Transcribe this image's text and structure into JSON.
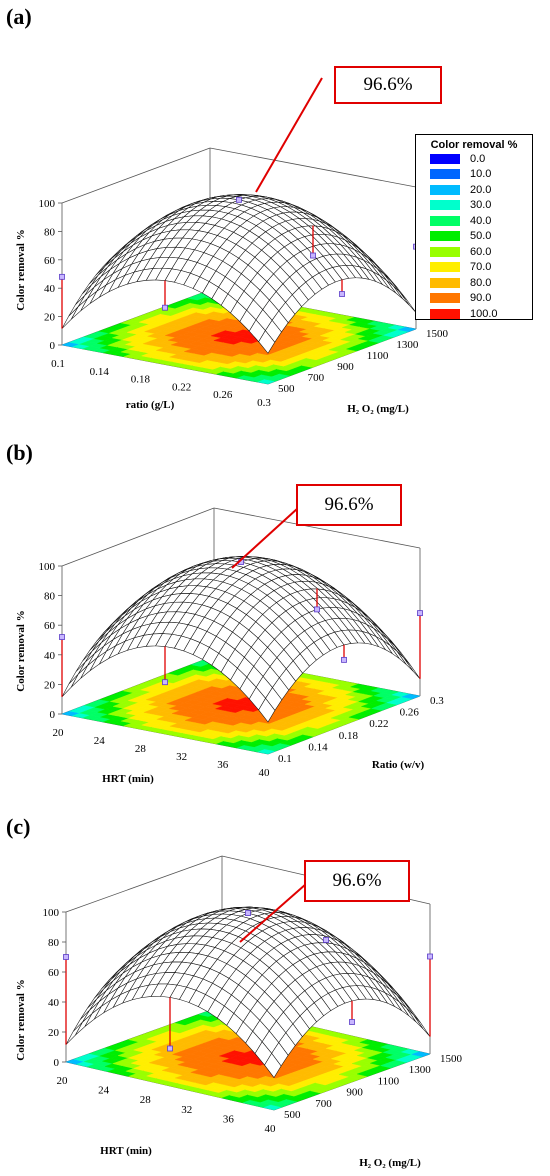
{
  "panels": [
    {
      "label": "(a)",
      "callout": "96.6%",
      "zlabel": "Color removal %",
      "xlabel": "ratio (g/L)",
      "ylabel": "H₂ O₂ (mg/L)",
      "zticks": [
        "0",
        "20",
        "40",
        "60",
        "80",
        "100"
      ],
      "xticks": [
        "0.1",
        "0.14",
        "0.18",
        "0.22",
        "0.26",
        "0.3"
      ],
      "yticks": [
        "500",
        "700",
        "900",
        "1100",
        "1300",
        "1500"
      ],
      "chart_data": {
        "type": "surface",
        "x_range": [
          0.1,
          0.3
        ],
        "y_range": [
          500,
          1500
        ],
        "z_range": [
          0,
          100
        ],
        "peak_value": 96.6,
        "design_points": [
          {
            "x": 0.1,
            "y": 500,
            "z": 48
          },
          {
            "x": 0.2,
            "y": 500,
            "z": 40
          },
          {
            "x": 0.2,
            "y": 1000,
            "z": 96.6
          },
          {
            "x": 0.3,
            "y": 1000,
            "z": 44
          },
          {
            "x": 0.3,
            "y": 1500,
            "z": 58
          },
          {
            "x": 0.2,
            "y": 1500,
            "z": 38
          }
        ]
      }
    },
    {
      "label": "(b)",
      "callout": "96.6%",
      "zlabel": "Color removal %",
      "xlabel": "HRT (min)",
      "ylabel": "Ratio (w/v)",
      "zticks": [
        "0",
        "20",
        "40",
        "60",
        "80",
        "100"
      ],
      "xticks": [
        "20",
        "24",
        "28",
        "32",
        "36",
        "40"
      ],
      "yticks": [
        "0.1",
        "0.14",
        "0.18",
        "0.22",
        "0.26",
        "0.3"
      ],
      "chart_data": {
        "type": "surface",
        "x_range": [
          20,
          40
        ],
        "y_range": [
          0.1,
          0.3
        ],
        "z_range": [
          0,
          100
        ],
        "peak_value": 96.6,
        "design_points": [
          {
            "x": 20,
            "y": 0.1,
            "z": 52
          },
          {
            "x": 30,
            "y": 0.1,
            "z": 35
          },
          {
            "x": 30,
            "y": 0.2,
            "z": 96.6
          },
          {
            "x": 40,
            "y": 0.2,
            "z": 44
          },
          {
            "x": 40,
            "y": 0.3,
            "z": 56
          },
          {
            "x": 30,
            "y": 0.3,
            "z": 45
          }
        ]
      }
    },
    {
      "label": "(c)",
      "callout": "96.6%",
      "zlabel": "Color removal %",
      "xlabel": "HRT (min)",
      "ylabel": "H₂ O₂ (mg/L)",
      "zticks": [
        "0",
        "20",
        "40",
        "60",
        "80",
        "100"
      ],
      "xticks": [
        "20",
        "24",
        "28",
        "32",
        "36",
        "40"
      ],
      "yticks": [
        "500",
        "700",
        "900",
        "1100",
        "1300",
        "1500"
      ],
      "chart_data": {
        "type": "surface",
        "x_range": [
          20,
          40
        ],
        "y_range": [
          500,
          1500
        ],
        "z_range": [
          0,
          100
        ],
        "peak_value": 96.6,
        "design_points": [
          {
            "x": 20,
            "y": 500,
            "z": 70
          },
          {
            "x": 30,
            "y": 500,
            "z": 25
          },
          {
            "x": 30,
            "y": 1000,
            "z": 96.6
          },
          {
            "x": 40,
            "y": 1000,
            "z": 40
          },
          {
            "x": 40,
            "y": 1500,
            "z": 65
          },
          {
            "x": 30,
            "y": 1500,
            "z": 60
          }
        ]
      }
    }
  ],
  "legend": {
    "title": "Color removal %",
    "entries": [
      {
        "label": "0.0",
        "color": "#0000ff"
      },
      {
        "label": "10.0",
        "color": "#0066ff"
      },
      {
        "label": "20.0",
        "color": "#00bbff"
      },
      {
        "label": "30.0",
        "color": "#00ffcc"
      },
      {
        "label": "40.0",
        "color": "#00ff66"
      },
      {
        "label": "50.0",
        "color": "#00ee00"
      },
      {
        "label": "60.0",
        "color": "#99ff00"
      },
      {
        "label": "70.0",
        "color": "#ffee00"
      },
      {
        "label": "80.0",
        "color": "#ffbb00"
      },
      {
        "label": "90.0",
        "color": "#ff7700"
      },
      {
        "label": "100.0",
        "color": "#ff1100"
      }
    ]
  }
}
